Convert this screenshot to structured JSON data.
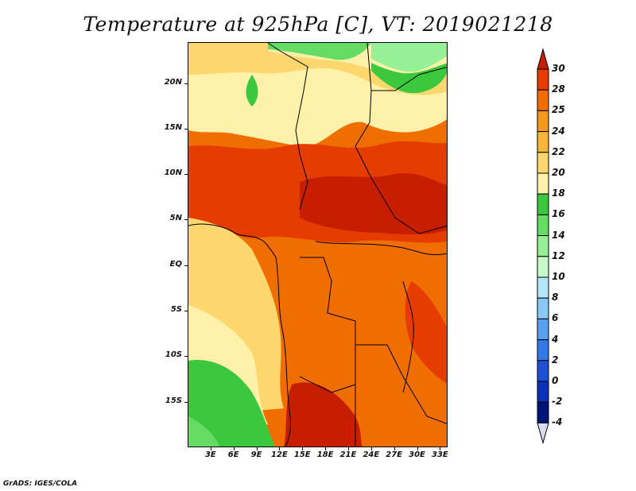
{
  "title": "Temperature at 925hPa [C], VT: 2019021218",
  "footer": "GrADS: IGES/COLA",
  "map": {
    "lat_labels": [
      "20N",
      "15N",
      "10N",
      "5N",
      "EQ",
      "5S",
      "10S",
      "15S"
    ],
    "lat_values": [
      20,
      15,
      10,
      5,
      0,
      -5,
      -10,
      -15
    ],
    "lon_labels": [
      "3E",
      "6E",
      "9E",
      "12E",
      "15E",
      "18E",
      "21E",
      "24E",
      "27E",
      "30E",
      "33E"
    ],
    "lon_values": [
      3,
      6,
      9,
      12,
      15,
      18,
      21,
      24,
      27,
      30,
      33
    ],
    "lon_range": [
      0,
      34
    ],
    "lat_range": [
      -20,
      24.5
    ]
  },
  "colorbar": {
    "levels": [
      "30",
      "28",
      "25",
      "24",
      "22",
      "20",
      "18",
      "16",
      "14",
      "12",
      "10",
      "8",
      "6",
      "4",
      "2",
      "0",
      "-2",
      "-4"
    ],
    "colors": [
      "#c81e00",
      "#e63c00",
      "#f06e00",
      "#f5961e",
      "#fab43c",
      "#fcd76e",
      "#fff0aa",
      "#3cc83c",
      "#64dc64",
      "#96f096",
      "#c8f8c8",
      "#b4e6fa",
      "#8cc8f5",
      "#5aa0f0",
      "#3278e6",
      "#1e50d2",
      "#0a32b4",
      "#001478",
      "#dcdcf0"
    ]
  }
}
